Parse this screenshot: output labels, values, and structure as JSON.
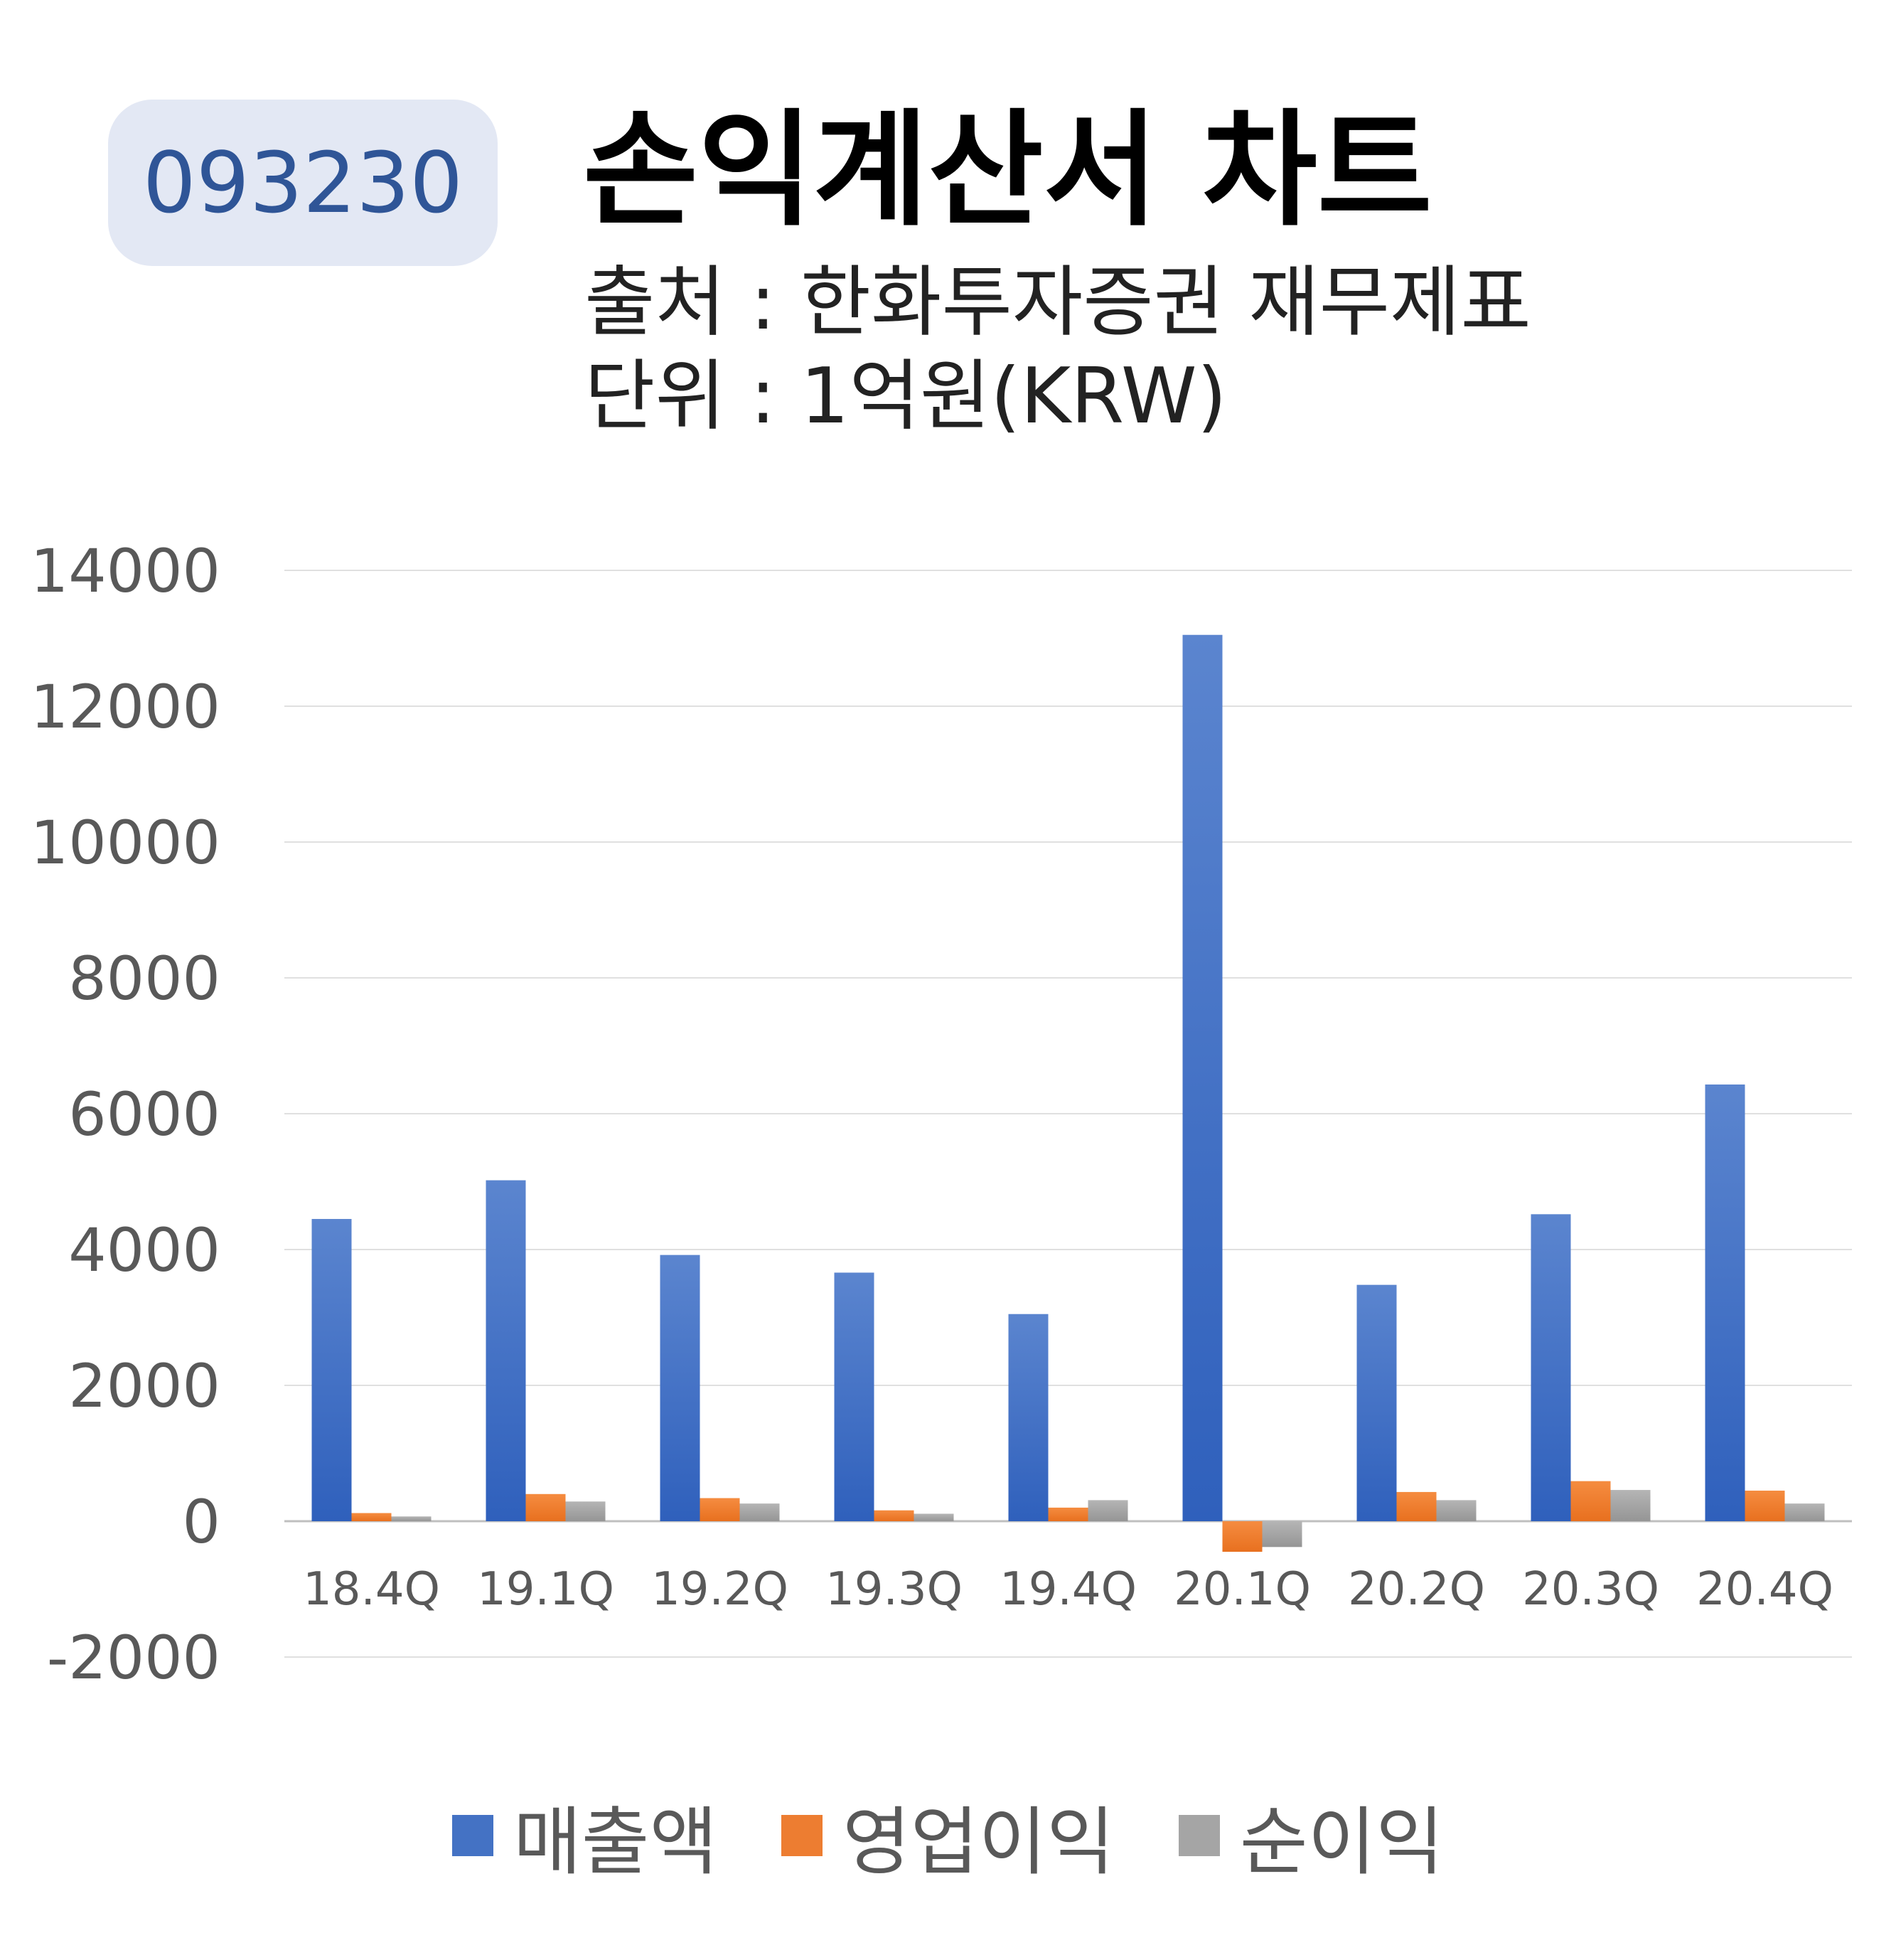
{
  "header": {
    "code": "093230",
    "title": "손익계산서 차트",
    "source": "출처 : 한화투자증권 재무제표",
    "unit": "단위 : 1억원(KRW)"
  },
  "colors": {
    "revenue": "#4472c4",
    "operating_profit": "#ed7d31",
    "net_profit": "#a5a5a5",
    "badge_bg": "#e3e8f4",
    "badge_text": "#2f5597"
  },
  "chart_data": {
    "type": "bar",
    "categories": [
      "18.4Q",
      "19.1Q",
      "19.2Q",
      "19.3Q",
      "19.4Q",
      "20.1Q",
      "20.2Q",
      "20.3Q",
      "20.4Q"
    ],
    "series": [
      {
        "name": "매출액",
        "values": [
          4450,
          5020,
          3920,
          3660,
          3050,
          13050,
          3480,
          4520,
          6430
        ]
      },
      {
        "name": "영업이익",
        "values": [
          120,
          400,
          340,
          160,
          200,
          -450,
          430,
          590,
          450
        ]
      },
      {
        "name": "순이익",
        "values": [
          70,
          290,
          260,
          110,
          310,
          -380,
          310,
          460,
          260
        ]
      }
    ],
    "yticks": [
      "14000",
      "12000",
      "10000",
      "8000",
      "6000",
      "4000",
      "2000",
      "0",
      "-2000"
    ],
    "ylim": [
      -2000,
      14000
    ],
    "grid": true,
    "legend_position": "bottom"
  }
}
